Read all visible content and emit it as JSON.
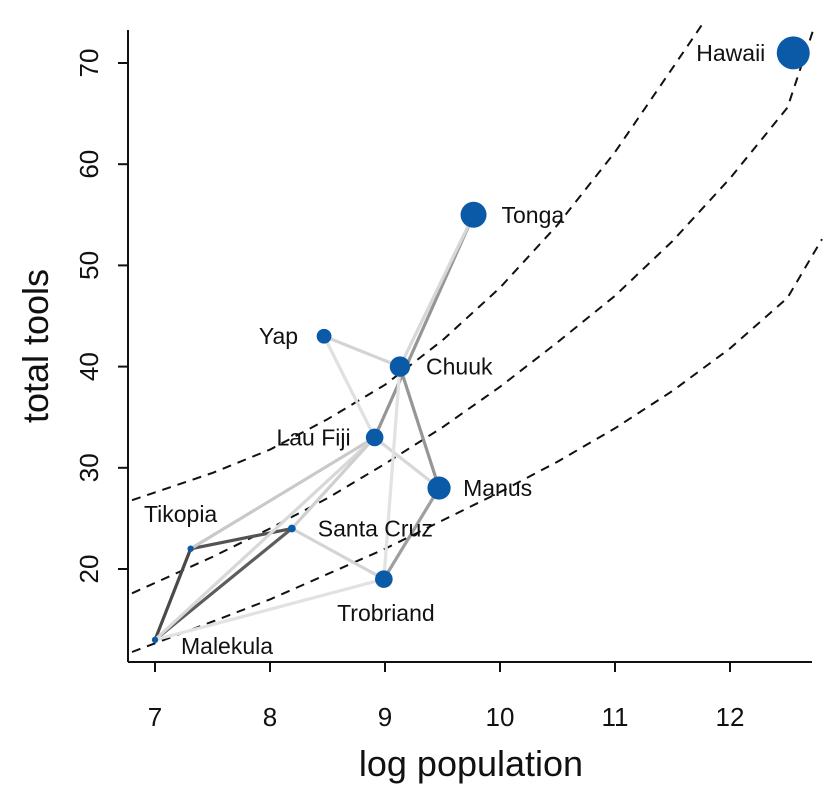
{
  "chart_data": {
    "type": "scatter",
    "xlabel": "log population",
    "ylabel": "total tools",
    "xlim": [
      6.8,
      12.8
    ],
    "ylim": [
      11.5,
      74
    ],
    "x_ticks": [
      7,
      8,
      9,
      10,
      11,
      12
    ],
    "y_ticks": [
      20,
      30,
      40,
      50,
      60,
      70
    ],
    "point_color": "#0a5aa8",
    "points": [
      {
        "label": "Malekula",
        "x": 7.0,
        "y": 13,
        "size": 0.05
      },
      {
        "label": "Tikopia",
        "x": 7.31,
        "y": 22,
        "size": 0.05
      },
      {
        "label": "Santa Cruz",
        "x": 8.19,
        "y": 24,
        "size": 0.1
      },
      {
        "label": "Yap",
        "x": 8.47,
        "y": 43,
        "size": 0.35
      },
      {
        "label": "Lau Fiji",
        "x": 8.91,
        "y": 33,
        "size": 0.45
      },
      {
        "label": "Trobriand",
        "x": 8.99,
        "y": 19,
        "size": 0.45
      },
      {
        "label": "Chuuk",
        "x": 9.13,
        "y": 40,
        "size": 0.55
      },
      {
        "label": "Manus",
        "x": 9.47,
        "y": 28,
        "size": 0.65
      },
      {
        "label": "Tonga",
        "x": 9.77,
        "y": 55,
        "size": 0.75
      },
      {
        "label": "Hawaii",
        "x": 12.55,
        "y": 71,
        "size": 1.0
      }
    ],
    "curves": [
      {
        "name": "upper",
        "style": "dashed",
        "x": [
          6.8,
          7.5,
          8.0,
          8.5,
          9.0,
          9.5,
          10.0,
          10.5,
          11.0,
          11.5,
          11.77
        ],
        "y": [
          26.8,
          29.5,
          31.8,
          34.8,
          38.2,
          42.6,
          47.8,
          54.0,
          61.2,
          69.5,
          74.0
        ]
      },
      {
        "name": "middle",
        "style": "dashed",
        "x": [
          6.8,
          7.5,
          8.0,
          8.5,
          9.0,
          9.5,
          10.0,
          10.5,
          11.0,
          11.5,
          12.0,
          12.5,
          12.73
        ],
        "y": [
          17.6,
          21.2,
          24.0,
          27.0,
          30.4,
          34.0,
          38.0,
          42.4,
          47.0,
          52.4,
          58.6,
          65.6,
          73.5
        ]
      },
      {
        "name": "lower",
        "style": "dashed",
        "x": [
          6.8,
          7.5,
          8.0,
          8.5,
          9.0,
          9.5,
          10.0,
          10.5,
          11.0,
          11.5,
          12.0,
          12.5,
          12.8
        ],
        "y": [
          11.8,
          14.8,
          17.0,
          19.5,
          22.0,
          24.8,
          27.6,
          30.6,
          33.9,
          37.6,
          41.8,
          46.8,
          52.6
        ]
      }
    ],
    "links": [
      {
        "from": "Malekula",
        "to": "Tikopia",
        "strength": 0.85
      },
      {
        "from": "Malekula",
        "to": "Santa Cruz",
        "strength": 0.75
      },
      {
        "from": "Tikopia",
        "to": "Santa Cruz",
        "strength": 0.8
      },
      {
        "from": "Tikopia",
        "to": "Lau Fiji",
        "strength": 0.18
      },
      {
        "from": "Malekula",
        "to": "Lau Fiji",
        "strength": 0.1
      },
      {
        "from": "Santa Cruz",
        "to": "Lau Fiji",
        "strength": 0.15
      },
      {
        "from": "Santa Cruz",
        "to": "Trobriand",
        "strength": 0.12
      },
      {
        "from": "Malekula",
        "to": "Trobriand",
        "strength": 0.05
      },
      {
        "from": "Lau Fiji",
        "to": "Tonga",
        "strength": 0.45
      },
      {
        "from": "Chuuk",
        "to": "Manus",
        "strength": 0.45
      },
      {
        "from": "Manus",
        "to": "Trobriand",
        "strength": 0.4
      },
      {
        "from": "Yap",
        "to": "Chuuk",
        "strength": 0.12
      },
      {
        "from": "Yap",
        "to": "Lau Fiji",
        "strength": 0.06
      },
      {
        "from": "Chuuk",
        "to": "Tonga",
        "strength": 0.1
      },
      {
        "from": "Lau Fiji",
        "to": "Manus",
        "strength": 0.1
      },
      {
        "from": "Chuuk",
        "to": "Trobriand",
        "strength": 0.05
      }
    ]
  }
}
